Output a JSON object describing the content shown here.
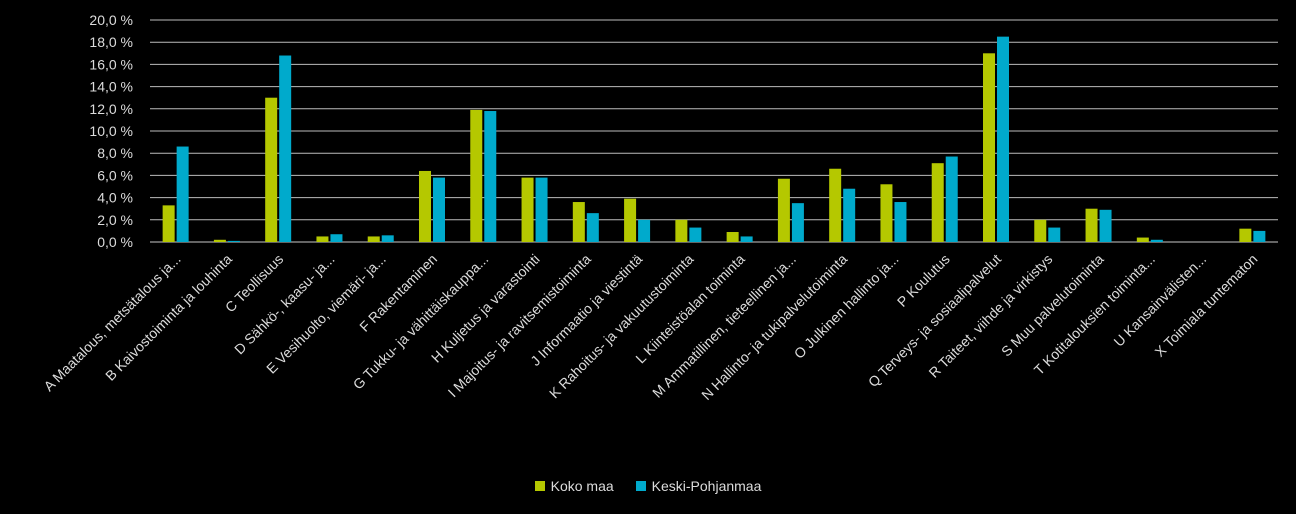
{
  "chart_data": {
    "type": "bar",
    "categories": [
      "A     Maatalous, metsätalous ja...",
      "B     Kaivostoiminta ja louhinta",
      "C     Teollisuus",
      "D     Sähkö-, kaasu- ja...",
      "E     Vesihuolto, viemäri- ja...",
      "F     Rakentaminen",
      "G     Tukku- ja vähittäiskauppa...",
      "H     Kuljetus ja varastointi",
      "I     Majoitus- ja ravitsemistoiminta",
      "J     Informaatio ja viestintä",
      "K     Rahoitus- ja vakuutustoiminta",
      "L     Kiinteistöalan toiminta",
      "M     Ammatillinen, tieteellinen ja...",
      "N     Hallinto- ja tukipalvelutoiminta",
      "O     Julkinen hallinto ja...",
      "P     Koulutus",
      "Q     Terveys- ja sosiaalipalvelut",
      "R     Taiteet, viihde ja virkistys",
      "S     Muu palvelutoiminta",
      "T     Kotitalouksien toiminta...",
      "U     Kansainvälisten...",
      "X     Toimiala tuntematon"
    ],
    "series": [
      {
        "name": "Koko maa",
        "color": "#b5c800",
        "values": [
          3.3,
          0.2,
          13.0,
          0.5,
          0.5,
          6.4,
          11.9,
          5.8,
          3.6,
          3.9,
          2.0,
          0.9,
          5.7,
          6.6,
          5.2,
          7.1,
          17.0,
          2.0,
          3.0,
          0.4,
          0.0,
          1.2
        ]
      },
      {
        "name": "Keski-Pohjanmaa",
        "color": "#00aacc",
        "values": [
          8.6,
          0.1,
          16.8,
          0.7,
          0.6,
          5.8,
          11.8,
          5.8,
          2.6,
          2.0,
          1.3,
          0.5,
          3.5,
          4.8,
          3.6,
          7.7,
          18.5,
          1.3,
          2.9,
          0.2,
          0.0,
          1.0
        ]
      }
    ],
    "yticks": [
      "0,0 %",
      "2,0 %",
      "4,0 %",
      "6,0 %",
      "8,0 %",
      "10,0 %",
      "12,0 %",
      "14,0 %",
      "16,0 %",
      "18,0 %",
      "20,0 %"
    ],
    "ylim": [
      0,
      20
    ],
    "grid": true,
    "legend_position": "bottom"
  }
}
